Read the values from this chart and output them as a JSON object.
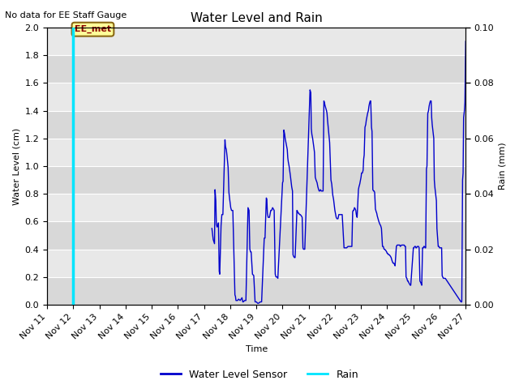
{
  "title": "Water Level and Rain",
  "subtitle": "No data for EE Staff Gauge",
  "xlabel": "Time",
  "ylabel_left": "Water Level (cm)",
  "ylabel_right": "Rain (mm)",
  "ylim_left": [
    0.0,
    2.0
  ],
  "ylim_right": [
    0.0,
    0.1
  ],
  "yticks_left": [
    0.0,
    0.2,
    0.4,
    0.6,
    0.8,
    1.0,
    1.2,
    1.4,
    1.6,
    1.8,
    2.0
  ],
  "yticks_right": [
    0.0,
    0.02,
    0.04,
    0.06,
    0.08,
    0.1
  ],
  "legend_labels": [
    "Water Level Sensor",
    "Rain"
  ],
  "water_color": "#0000cc",
  "rain_color": "#00e5ff",
  "annotation_text": "EE_met",
  "annotation_color": "#8b0000",
  "annotation_bg": "#ffff99",
  "annotation_border": "#8b6914",
  "rain_spike_day": 12.0,
  "water_data": [
    [
      17.3,
      0.55
    ],
    [
      17.35,
      0.47
    ],
    [
      17.4,
      0.44
    ],
    [
      17.42,
      0.83
    ],
    [
      17.45,
      0.75
    ],
    [
      17.47,
      0.58
    ],
    [
      17.5,
      0.56
    ],
    [
      17.52,
      0.57
    ],
    [
      17.55,
      0.59
    ],
    [
      17.58,
      0.24
    ],
    [
      17.6,
      0.22
    ],
    [
      17.65,
      0.57
    ],
    [
      17.68,
      0.65
    ],
    [
      17.72,
      0.65
    ],
    [
      17.8,
      1.19
    ],
    [
      17.82,
      1.14
    ],
    [
      17.85,
      1.12
    ],
    [
      17.88,
      1.07
    ],
    [
      17.92,
      0.99
    ],
    [
      17.95,
      0.81
    ],
    [
      17.98,
      0.76
    ],
    [
      18.02,
      0.7
    ],
    [
      18.05,
      0.68
    ],
    [
      18.1,
      0.68
    ],
    [
      18.18,
      0.07
    ],
    [
      18.2,
      0.06
    ],
    [
      18.22,
      0.03
    ],
    [
      18.28,
      0.03
    ],
    [
      18.32,
      0.04
    ],
    [
      18.38,
      0.03
    ],
    [
      18.45,
      0.05
    ],
    [
      18.48,
      0.02
    ],
    [
      18.5,
      0.02
    ],
    [
      18.55,
      0.03
    ],
    [
      18.6,
      0.03
    ],
    [
      18.68,
      0.7
    ],
    [
      18.7,
      0.69
    ],
    [
      18.72,
      0.68
    ],
    [
      18.75,
      0.4
    ],
    [
      18.78,
      0.38
    ],
    [
      18.8,
      0.38
    ],
    [
      18.85,
      0.22
    ],
    [
      18.9,
      0.21
    ],
    [
      18.95,
      0.02
    ],
    [
      19.0,
      0.02
    ],
    [
      19.05,
      0.01
    ],
    [
      19.08,
      0.01
    ],
    [
      19.15,
      0.02
    ],
    [
      19.2,
      0.02
    ],
    [
      19.3,
      0.48
    ],
    [
      19.33,
      0.48
    ],
    [
      19.38,
      0.77
    ],
    [
      19.4,
      0.76
    ],
    [
      19.42,
      0.66
    ],
    [
      19.45,
      0.63
    ],
    [
      19.48,
      0.63
    ],
    [
      19.5,
      0.63
    ],
    [
      19.55,
      0.68
    ],
    [
      19.58,
      0.68
    ],
    [
      19.6,
      0.69
    ],
    [
      19.62,
      0.7
    ],
    [
      19.65,
      0.69
    ],
    [
      19.68,
      0.68
    ],
    [
      19.72,
      0.22
    ],
    [
      19.75,
      0.2
    ],
    [
      19.8,
      0.2
    ],
    [
      19.82,
      0.19
    ],
    [
      20.0,
      0.88
    ],
    [
      20.02,
      0.89
    ],
    [
      20.05,
      1.26
    ],
    [
      20.08,
      1.23
    ],
    [
      20.1,
      1.2
    ],
    [
      20.12,
      1.18
    ],
    [
      20.15,
      1.15
    ],
    [
      20.18,
      1.12
    ],
    [
      20.2,
      1.06
    ],
    [
      20.22,
      1.03
    ],
    [
      20.25,
      1.0
    ],
    [
      20.28,
      0.96
    ],
    [
      20.3,
      0.93
    ],
    [
      20.32,
      0.9
    ],
    [
      20.35,
      0.85
    ],
    [
      20.38,
      0.82
    ],
    [
      20.4,
      0.36
    ],
    [
      20.42,
      0.35
    ],
    [
      20.45,
      0.34
    ],
    [
      20.48,
      0.34
    ],
    [
      20.55,
      0.68
    ],
    [
      20.58,
      0.67
    ],
    [
      20.6,
      0.66
    ],
    [
      20.62,
      0.66
    ],
    [
      20.65,
      0.65
    ],
    [
      20.68,
      0.65
    ],
    [
      20.72,
      0.64
    ],
    [
      20.75,
      0.63
    ],
    [
      20.78,
      0.41
    ],
    [
      20.8,
      0.4
    ],
    [
      20.82,
      0.4
    ],
    [
      20.85,
      0.4
    ],
    [
      21.05,
      1.55
    ],
    [
      21.08,
      1.53
    ],
    [
      21.1,
      1.27
    ],
    [
      21.12,
      1.23
    ],
    [
      21.15,
      1.2
    ],
    [
      21.18,
      1.16
    ],
    [
      21.2,
      1.13
    ],
    [
      21.22,
      1.1
    ],
    [
      21.25,
      0.92
    ],
    [
      21.28,
      0.9
    ],
    [
      21.3,
      0.89
    ],
    [
      21.32,
      0.88
    ],
    [
      21.35,
      0.85
    ],
    [
      21.38,
      0.83
    ],
    [
      21.4,
      0.82
    ],
    [
      21.42,
      0.82
    ],
    [
      21.45,
      0.83
    ],
    [
      21.48,
      0.82
    ],
    [
      21.52,
      0.82
    ],
    [
      21.55,
      0.82
    ],
    [
      21.58,
      1.47
    ],
    [
      21.6,
      1.46
    ],
    [
      21.62,
      1.44
    ],
    [
      21.65,
      1.42
    ],
    [
      21.68,
      1.4
    ],
    [
      21.7,
      1.38
    ],
    [
      21.72,
      1.33
    ],
    [
      21.75,
      1.27
    ],
    [
      21.78,
      1.21
    ],
    [
      21.8,
      1.17
    ],
    [
      21.85,
      0.9
    ],
    [
      21.88,
      0.87
    ],
    [
      21.9,
      0.83
    ],
    [
      21.92,
      0.79
    ],
    [
      21.95,
      0.76
    ],
    [
      21.98,
      0.71
    ],
    [
      22.0,
      0.68
    ],
    [
      22.02,
      0.66
    ],
    [
      22.05,
      0.63
    ],
    [
      22.08,
      0.62
    ],
    [
      22.1,
      0.62
    ],
    [
      22.12,
      0.62
    ],
    [
      22.15,
      0.65
    ],
    [
      22.18,
      0.65
    ],
    [
      22.2,
      0.65
    ],
    [
      22.22,
      0.65
    ],
    [
      22.25,
      0.65
    ],
    [
      22.28,
      0.65
    ],
    [
      22.35,
      0.41
    ],
    [
      22.38,
      0.41
    ],
    [
      22.42,
      0.41
    ],
    [
      22.45,
      0.41
    ],
    [
      22.5,
      0.42
    ],
    [
      22.52,
      0.42
    ],
    [
      22.55,
      0.42
    ],
    [
      22.58,
      0.42
    ],
    [
      22.62,
      0.42
    ],
    [
      22.65,
      0.42
    ],
    [
      22.68,
      0.67
    ],
    [
      22.7,
      0.68
    ],
    [
      22.72,
      0.68
    ],
    [
      22.75,
      0.7
    ],
    [
      22.78,
      0.69
    ],
    [
      22.8,
      0.68
    ],
    [
      22.82,
      0.65
    ],
    [
      22.85,
      0.63
    ],
    [
      22.9,
      0.83
    ],
    [
      22.92,
      0.85
    ],
    [
      22.95,
      0.87
    ],
    [
      22.98,
      0.9
    ],
    [
      23.0,
      0.92
    ],
    [
      23.02,
      0.95
    ],
    [
      23.05,
      0.95
    ],
    [
      23.08,
      0.97
    ],
    [
      23.1,
      1.05
    ],
    [
      23.12,
      1.08
    ],
    [
      23.15,
      1.28
    ],
    [
      23.18,
      1.3
    ],
    [
      23.2,
      1.33
    ],
    [
      23.22,
      1.35
    ],
    [
      23.25,
      1.38
    ],
    [
      23.28,
      1.4
    ],
    [
      23.3,
      1.43
    ],
    [
      23.32,
      1.45
    ],
    [
      23.35,
      1.47
    ],
    [
      23.37,
      1.47
    ],
    [
      23.4,
      1.28
    ],
    [
      23.42,
      1.25
    ],
    [
      23.45,
      0.83
    ],
    [
      23.48,
      0.82
    ],
    [
      23.5,
      0.82
    ],
    [
      23.52,
      0.81
    ],
    [
      23.55,
      0.69
    ],
    [
      23.58,
      0.67
    ],
    [
      23.6,
      0.66
    ],
    [
      23.62,
      0.64
    ],
    [
      23.65,
      0.62
    ],
    [
      23.68,
      0.6
    ],
    [
      23.7,
      0.59
    ],
    [
      23.72,
      0.58
    ],
    [
      23.75,
      0.57
    ],
    [
      23.78,
      0.55
    ],
    [
      23.82,
      0.42
    ],
    [
      23.85,
      0.42
    ],
    [
      23.88,
      0.4
    ],
    [
      23.9,
      0.4
    ],
    [
      23.95,
      0.39
    ],
    [
      23.98,
      0.38
    ],
    [
      24.0,
      0.37
    ],
    [
      24.02,
      0.37
    ],
    [
      24.05,
      0.36
    ],
    [
      24.08,
      0.36
    ],
    [
      24.12,
      0.35
    ],
    [
      24.15,
      0.34
    ],
    [
      24.18,
      0.32
    ],
    [
      24.2,
      0.31
    ],
    [
      24.22,
      0.3
    ],
    [
      24.25,
      0.3
    ],
    [
      24.28,
      0.29
    ],
    [
      24.3,
      0.28
    ],
    [
      24.35,
      0.42
    ],
    [
      24.38,
      0.43
    ],
    [
      24.42,
      0.43
    ],
    [
      24.45,
      0.43
    ],
    [
      24.48,
      0.43
    ],
    [
      24.5,
      0.42
    ],
    [
      24.55,
      0.43
    ],
    [
      24.58,
      0.43
    ],
    [
      24.62,
      0.43
    ],
    [
      24.65,
      0.43
    ],
    [
      24.68,
      0.42
    ],
    [
      24.7,
      0.42
    ],
    [
      24.72,
      0.2
    ],
    [
      24.75,
      0.19
    ],
    [
      24.78,
      0.17
    ],
    [
      24.8,
      0.17
    ],
    [
      24.82,
      0.16
    ],
    [
      24.85,
      0.15
    ],
    [
      24.88,
      0.14
    ],
    [
      24.9,
      0.14
    ],
    [
      25.0,
      0.41
    ],
    [
      25.02,
      0.41
    ],
    [
      25.05,
      0.42
    ],
    [
      25.08,
      0.42
    ],
    [
      25.1,
      0.41
    ],
    [
      25.12,
      0.41
    ],
    [
      25.15,
      0.42
    ],
    [
      25.18,
      0.42
    ],
    [
      25.2,
      0.42
    ],
    [
      25.22,
      0.41
    ],
    [
      25.25,
      0.17
    ],
    [
      25.28,
      0.16
    ],
    [
      25.3,
      0.15
    ],
    [
      25.32,
      0.14
    ],
    [
      25.35,
      0.41
    ],
    [
      25.38,
      0.41
    ],
    [
      25.4,
      0.42
    ],
    [
      25.42,
      0.42
    ],
    [
      25.45,
      0.41
    ],
    [
      25.47,
      0.41
    ],
    [
      25.5,
      0.98
    ],
    [
      25.52,
      1.0
    ],
    [
      25.55,
      1.38
    ],
    [
      25.58,
      1.4
    ],
    [
      25.6,
      1.43
    ],
    [
      25.62,
      1.45
    ],
    [
      25.65,
      1.47
    ],
    [
      25.68,
      1.47
    ],
    [
      25.7,
      1.35
    ],
    [
      25.72,
      1.3
    ],
    [
      25.75,
      1.25
    ],
    [
      25.78,
      1.2
    ],
    [
      25.8,
      0.9
    ],
    [
      25.82,
      0.85
    ],
    [
      25.85,
      0.8
    ],
    [
      25.88,
      0.75
    ],
    [
      25.9,
      0.55
    ],
    [
      25.92,
      0.5
    ],
    [
      25.95,
      0.42
    ],
    [
      25.98,
      0.42
    ],
    [
      26.0,
      0.41
    ],
    [
      26.02,
      0.41
    ],
    [
      26.05,
      0.41
    ],
    [
      26.08,
      0.41
    ],
    [
      26.1,
      0.21
    ],
    [
      26.12,
      0.2
    ],
    [
      26.15,
      0.19
    ],
    [
      26.18,
      0.19
    ],
    [
      26.2,
      0.19
    ],
    [
      26.22,
      0.19
    ],
    [
      26.82,
      0.02
    ],
    [
      26.85,
      0.02
    ],
    [
      26.88,
      0.9
    ],
    [
      26.9,
      0.95
    ],
    [
      26.92,
      1.35
    ],
    [
      26.95,
      1.4
    ],
    [
      26.97,
      1.46
    ],
    [
      27.0,
      1.9
    ]
  ],
  "xmin_day": 11,
  "xmax_day": 27,
  "xtick_days": [
    11,
    12,
    13,
    14,
    15,
    16,
    17,
    18,
    19,
    20,
    21,
    22,
    23,
    24,
    25,
    26,
    27
  ],
  "xtick_labels": [
    "Nov 11",
    "Nov 12",
    "Nov 13",
    "Nov 14",
    "Nov 15",
    "Nov 16",
    "Nov 17",
    "Nov 18",
    "Nov 19",
    "Nov 20",
    "Nov 21",
    "Nov 22",
    "Nov 23",
    "Nov 24",
    "Nov 25",
    "Nov 26",
    "Nov 27"
  ],
  "bg_color": "#e8e8e8",
  "grid_color": "#ffffff",
  "title_fontsize": 11,
  "label_fontsize": 8,
  "tick_fontsize": 8
}
